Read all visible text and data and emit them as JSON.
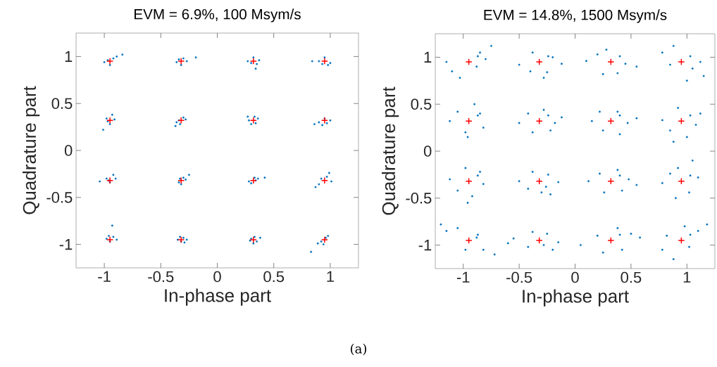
{
  "chart_data": [
    {
      "type": "scatter",
      "title": "EVM = 6.9%, 100 Msym/s",
      "xlabel": "In-phase part",
      "ylabel": "Quadrature part",
      "xlim": [
        -1.25,
        1.25
      ],
      "ylim": [
        -1.25,
        1.25
      ],
      "xticks": [
        -1,
        -0.5,
        0,
        0.5,
        1
      ],
      "yticks": [
        -1,
        -0.5,
        0,
        0.5,
        1
      ],
      "annotations": [
        "(a)"
      ],
      "series": [
        {
          "color": "#0072bd",
          "marker": "circle",
          "x": [
            -1.0,
            -0.92,
            -0.95,
            -0.89,
            -0.97,
            -0.84,
            -0.36,
            -0.3,
            -0.32,
            -0.27,
            -0.34,
            -0.19,
            0.27,
            0.32,
            0.35,
            0.3,
            0.37,
            0.34,
            0.9,
            0.95,
            0.98,
            1.0,
            0.93,
            0.84,
            -0.98,
            -0.93,
            -0.95,
            -0.91,
            -0.97,
            -1.01,
            -0.36,
            -0.3,
            -0.33,
            -0.28,
            -0.34,
            -0.37,
            0.28,
            0.33,
            0.3,
            0.36,
            0.34,
            0.27,
            0.9,
            0.95,
            0.97,
            0.93,
            1.0,
            0.86,
            -0.98,
            -0.92,
            -0.95,
            -0.9,
            -0.96,
            -1.04,
            -0.34,
            -0.3,
            -0.32,
            -0.28,
            -0.33,
            -0.25,
            0.28,
            0.33,
            0.3,
            0.36,
            0.34,
            0.42,
            0.92,
            1.01,
            0.97,
            0.9,
            0.99,
            0.87,
            -0.98,
            -0.92,
            -0.95,
            -0.89,
            -0.96,
            -0.93,
            -0.35,
            -0.3,
            -0.32,
            -0.27,
            -0.33,
            -0.29,
            0.29,
            0.33,
            0.35,
            0.3,
            0.38,
            0.32,
            0.92,
            0.96,
            0.98,
            0.94,
            0.89,
            0.83
          ],
          "values": [
            0.94,
            0.98,
            0.91,
            1.0,
            0.96,
            1.02,
            0.94,
            0.98,
            0.91,
            0.95,
            0.97,
            0.99,
            0.95,
            0.99,
            0.92,
            0.93,
            0.96,
            0.87,
            0.95,
            0.99,
            0.91,
            0.93,
            0.92,
            0.95,
            0.34,
            0.38,
            0.28,
            0.33,
            0.31,
            0.22,
            0.3,
            0.35,
            0.28,
            0.33,
            0.32,
            0.26,
            0.32,
            0.36,
            0.28,
            0.34,
            0.29,
            0.36,
            0.3,
            0.34,
            0.29,
            0.27,
            0.32,
            0.28,
            -0.3,
            -0.26,
            -0.34,
            -0.3,
            -0.32,
            -0.33,
            -0.34,
            -0.29,
            -0.36,
            -0.31,
            -0.3,
            -0.26,
            -0.33,
            -0.29,
            -0.35,
            -0.3,
            -0.32,
            -0.29,
            -0.3,
            -0.33,
            -0.28,
            -0.36,
            -0.24,
            -0.39,
            -0.94,
            -0.92,
            -0.97,
            -0.95,
            -0.91,
            -0.8,
            -0.95,
            -0.93,
            -0.97,
            -0.95,
            -0.92,
            -0.98,
            -0.96,
            -0.92,
            -0.97,
            -0.94,
            -0.93,
            -0.99,
            -0.97,
            -0.93,
            -0.91,
            -1.0,
            -0.99,
            -1.08
          ]
        },
        {
          "color": "#ff0000",
          "marker": "cross",
          "x": [
            -0.95,
            -0.32,
            0.32,
            0.95,
            -0.95,
            -0.32,
            0.32,
            0.95,
            -0.95,
            -0.32,
            0.32,
            0.95,
            -0.95,
            -0.32,
            0.32,
            0.95
          ],
          "values": [
            0.95,
            0.95,
            0.95,
            0.95,
            0.32,
            0.32,
            0.32,
            0.32,
            -0.32,
            -0.32,
            -0.32,
            -0.32,
            -0.95,
            -0.95,
            -0.95,
            -0.95
          ]
        }
      ]
    },
    {
      "type": "scatter",
      "title": "EVM = 14.8%, 1500 Msym/s",
      "xlabel": "In-phase part",
      "ylabel": "Quadrature part",
      "xlim": [
        -1.25,
        1.25
      ],
      "ylim": [
        -1.25,
        1.25
      ],
      "xticks": [
        -1,
        -0.5,
        0,
        0.5,
        1
      ],
      "yticks": [
        -1,
        -0.5,
        0,
        0.5,
        1
      ],
      "series": [
        {
          "color": "#0072bd",
          "marker": "circle",
          "x": [
            -1.1,
            -0.87,
            -0.85,
            -0.75,
            -1.03,
            -0.88,
            -1.15,
            -0.8,
            -0.5,
            -0.24,
            -0.2,
            -0.12,
            -0.4,
            -0.25,
            -0.38,
            -0.28,
            0.1,
            0.4,
            0.45,
            0.55,
            0.2,
            0.38,
            0.28,
            0.25,
            0.78,
            1.03,
            1.05,
            1.15,
            0.88,
            1.0,
            0.85,
            1.12,
            -1.12,
            -0.87,
            -0.85,
            -0.98,
            -0.9,
            -1.05,
            -0.82,
            -0.96,
            -0.5,
            -0.24,
            -0.18,
            -0.38,
            -0.28,
            -0.42,
            -0.22,
            -0.12,
            0.15,
            0.4,
            0.47,
            0.38,
            0.25,
            0.4,
            0.22,
            0.55,
            0.78,
            1.03,
            1.08,
            0.92,
            1.0,
            0.88,
            1.12,
            0.85,
            -1.12,
            -0.87,
            -0.82,
            -0.98,
            -0.92,
            -1.05,
            -0.85,
            -0.96,
            -0.5,
            -0.26,
            -0.15,
            -0.38,
            -0.3,
            -0.24,
            -0.42,
            -0.22,
            0.12,
            0.4,
            0.48,
            0.26,
            0.38,
            0.22,
            0.42,
            0.55,
            0.78,
            1.03,
            1.1,
            0.92,
            0.9,
            1.02,
            0.85,
            1.05,
            -1.15,
            -0.87,
            -0.82,
            -0.72,
            -1.05,
            -0.88,
            -0.98,
            -1.2,
            -0.55,
            -0.28,
            -0.15,
            -0.42,
            -0.25,
            -0.38,
            -0.2,
            -0.6,
            0.05,
            0.4,
            0.5,
            0.42,
            0.2,
            0.25,
            0.58,
            0.38,
            0.78,
            1.03,
            1.1,
            0.88,
            1.02,
            1.18,
            0.82,
            0.98
          ],
          "values": [
            0.85,
            1.01,
            1.05,
            1.12,
            0.78,
            0.9,
            0.95,
            0.98,
            0.92,
            1.01,
            1.0,
            0.93,
            0.85,
            0.84,
            1.05,
            0.78,
            0.96,
            1.01,
            0.93,
            0.9,
            1.03,
            0.83,
            1.08,
            0.82,
            1.05,
            1.01,
            0.88,
            0.8,
            1.12,
            0.75,
            0.92,
            0.95,
            0.32,
            0.38,
            0.4,
            0.2,
            0.5,
            0.42,
            0.25,
            0.15,
            0.3,
            0.38,
            0.3,
            0.2,
            0.44,
            0.4,
            0.22,
            0.36,
            0.32,
            0.38,
            0.3,
            0.42,
            0.22,
            0.18,
            0.42,
            0.35,
            0.33,
            0.38,
            0.28,
            0.46,
            0.15,
            0.1,
            0.4,
            0.22,
            -0.3,
            -0.26,
            -0.35,
            -0.18,
            -0.48,
            -0.42,
            -0.22,
            -0.55,
            -0.32,
            -0.38,
            -0.33,
            -0.22,
            -0.44,
            -0.25,
            -0.4,
            -0.46,
            -0.32,
            -0.26,
            -0.3,
            -0.44,
            -0.2,
            -0.24,
            -0.42,
            -0.36,
            -0.34,
            -0.26,
            -0.28,
            -0.18,
            -0.5,
            -0.44,
            -0.24,
            -0.1,
            -0.85,
            -0.89,
            -1.05,
            -1.1,
            -0.82,
            -0.92,
            -1.05,
            -0.78,
            -0.93,
            -1.0,
            -0.97,
            -1.02,
            -0.88,
            -0.86,
            -1.05,
            -0.98,
            -1.0,
            -0.89,
            -0.88,
            -1.05,
            -0.9,
            -1.08,
            -0.92,
            -0.82,
            -1.05,
            -0.89,
            -0.85,
            -1.15,
            -1.02,
            -0.78,
            -0.9,
            -0.8
          ]
        },
        {
          "color": "#ff0000",
          "marker": "cross",
          "x": [
            -0.95,
            -0.32,
            0.32,
            0.95,
            -0.95,
            -0.32,
            0.32,
            0.95,
            -0.95,
            -0.32,
            0.32,
            0.95,
            -0.95,
            -0.32,
            0.32,
            0.95
          ],
          "values": [
            0.95,
            0.95,
            0.95,
            0.95,
            0.32,
            0.32,
            0.32,
            0.32,
            -0.32,
            -0.32,
            -0.32,
            -0.32,
            -0.95,
            -0.95,
            -0.95,
            -0.95
          ]
        }
      ]
    }
  ]
}
